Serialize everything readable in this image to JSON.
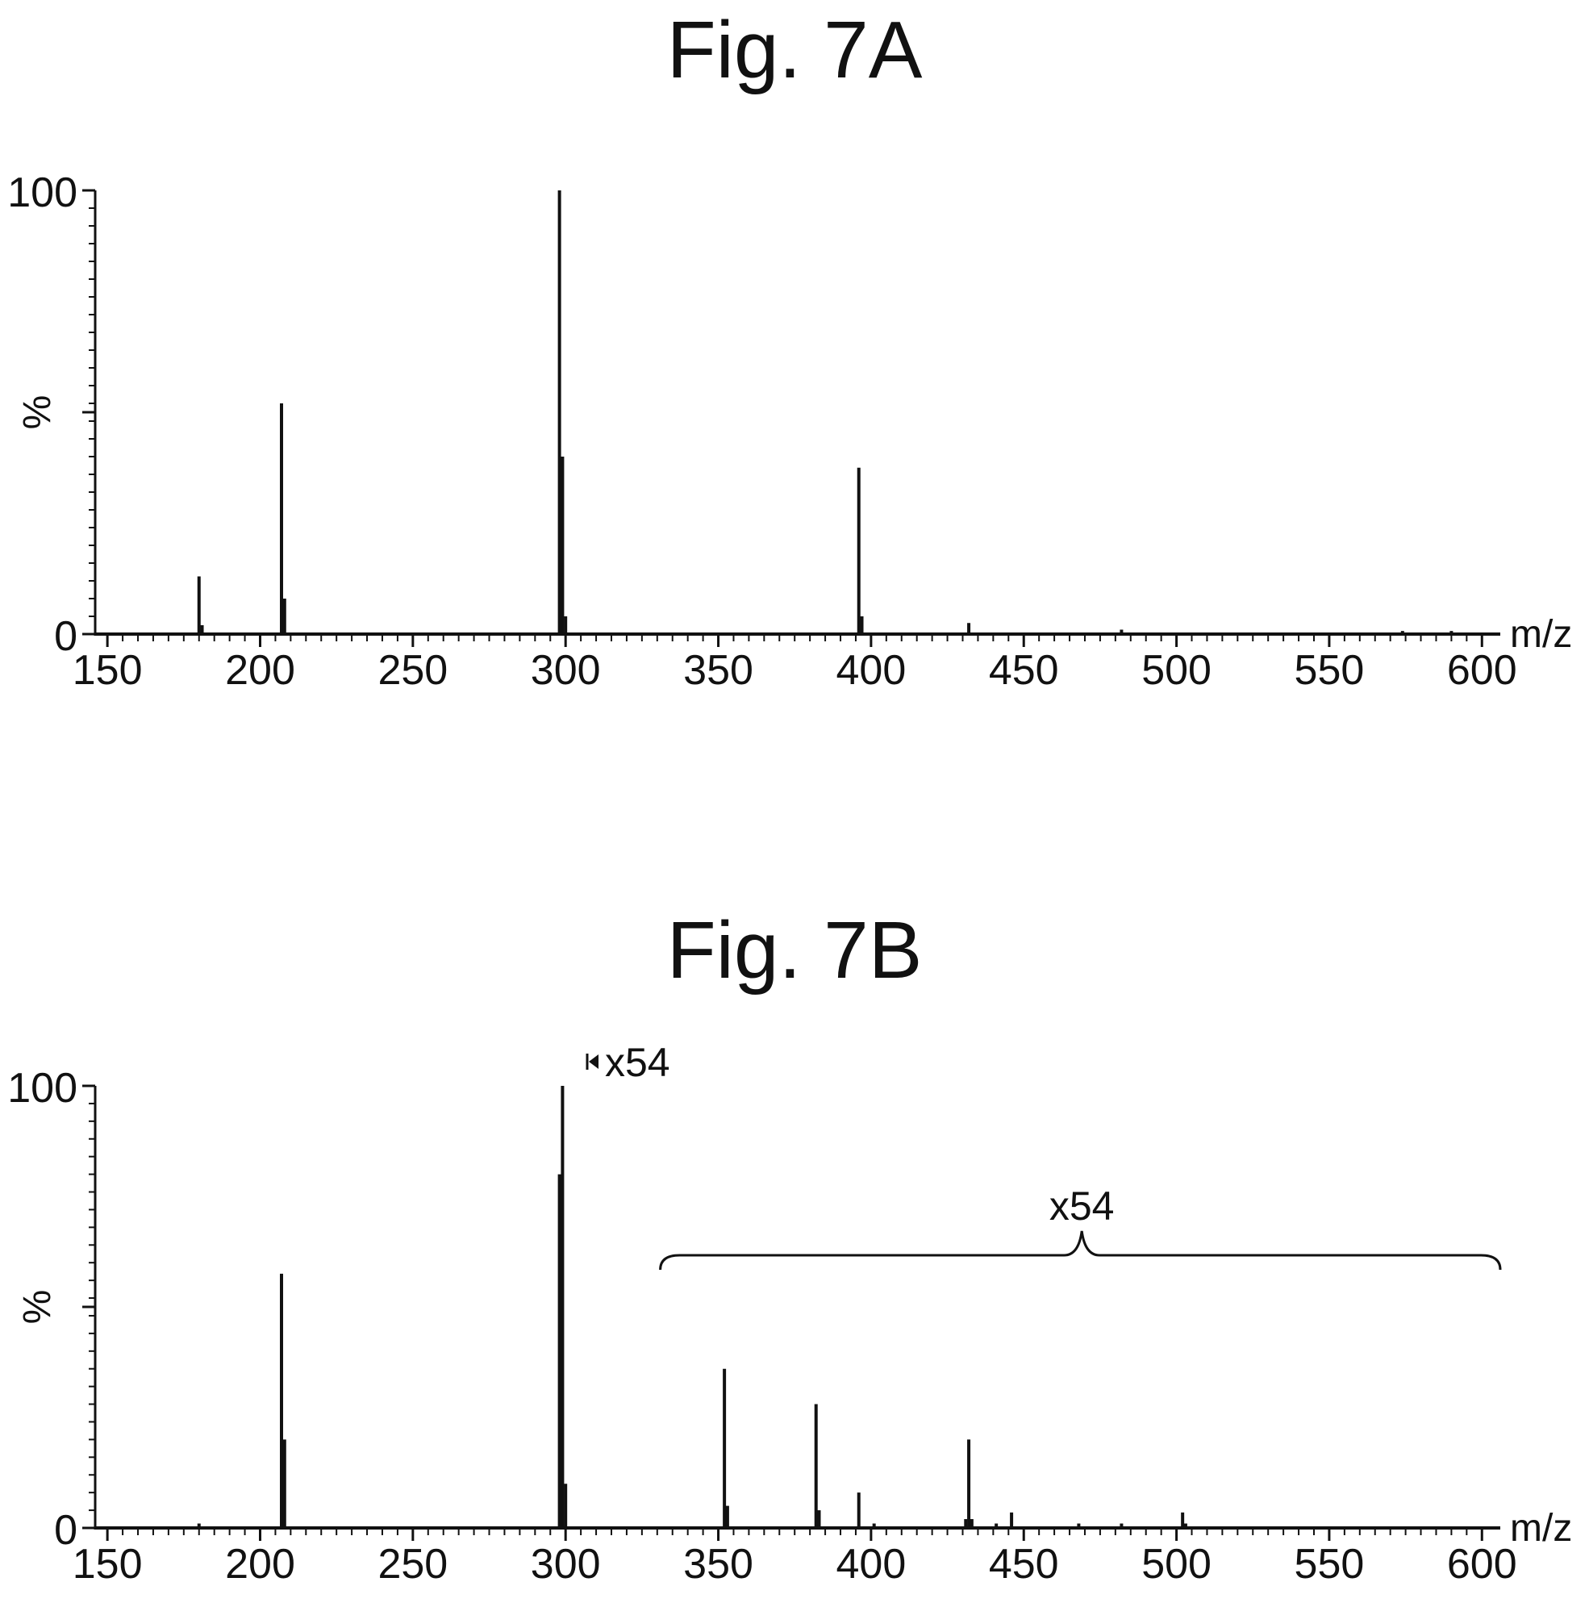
{
  "chart_data": [
    {
      "type": "bar",
      "title": "Fig. 7A",
      "xlabel": "m/z",
      "ylabel": "%",
      "xlim": [
        146,
        606
      ],
      "ylim": [
        0,
        100
      ],
      "x_ticks": [
        "150",
        "200",
        "250",
        "300",
        "350",
        "400",
        "450",
        "500",
        "550",
        "600"
      ],
      "y_ticks": [
        "0",
        "100"
      ],
      "peaks": [
        {
          "mz": 180,
          "intensity": 13
        },
        {
          "mz": 181,
          "intensity": 2
        },
        {
          "mz": 207,
          "intensity": 52
        },
        {
          "mz": 208,
          "intensity": 8
        },
        {
          "mz": 298,
          "intensity": 100
        },
        {
          "mz": 299,
          "intensity": 40
        },
        {
          "mz": 300,
          "intensity": 4
        },
        {
          "mz": 396,
          "intensity": 37.5
        },
        {
          "mz": 397,
          "intensity": 4
        },
        {
          "mz": 432,
          "intensity": 2.5
        },
        {
          "mz": 482,
          "intensity": 1
        },
        {
          "mz": 574,
          "intensity": 0.7
        },
        {
          "mz": 590,
          "intensity": 0.7
        }
      ]
    },
    {
      "type": "bar",
      "title": "Fig. 7B",
      "xlabel": "m/z",
      "ylabel": "%",
      "xlim": [
        146,
        606
      ],
      "ylim": [
        0,
        100
      ],
      "x_ticks": [
        "150",
        "200",
        "250",
        "300",
        "350",
        "400",
        "450",
        "500",
        "550",
        "600"
      ],
      "y_ticks": [
        "0",
        "100"
      ],
      "annotations": {
        "marker_label": "x54",
        "range_label": "x54",
        "range_mz": [
          331,
          606
        ]
      },
      "peaks": [
        {
          "mz": 180,
          "intensity": 1
        },
        {
          "mz": 207,
          "intensity": 57.5
        },
        {
          "mz": 208,
          "intensity": 20
        },
        {
          "mz": 298,
          "intensity": 80
        },
        {
          "mz": 299,
          "intensity": 100
        },
        {
          "mz": 300,
          "intensity": 10
        },
        {
          "mz": 352,
          "intensity": 36
        },
        {
          "mz": 353,
          "intensity": 5
        },
        {
          "mz": 382,
          "intensity": 28
        },
        {
          "mz": 383,
          "intensity": 4
        },
        {
          "mz": 396,
          "intensity": 8
        },
        {
          "mz": 401,
          "intensity": 1
        },
        {
          "mz": 431,
          "intensity": 2
        },
        {
          "mz": 432,
          "intensity": 20
        },
        {
          "mz": 433,
          "intensity": 2
        },
        {
          "mz": 441,
          "intensity": 1
        },
        {
          "mz": 446,
          "intensity": 3.5
        },
        {
          "mz": 468,
          "intensity": 1
        },
        {
          "mz": 482,
          "intensity": 1
        },
        {
          "mz": 502,
          "intensity": 3.5
        },
        {
          "mz": 503,
          "intensity": 1
        }
      ]
    }
  ]
}
